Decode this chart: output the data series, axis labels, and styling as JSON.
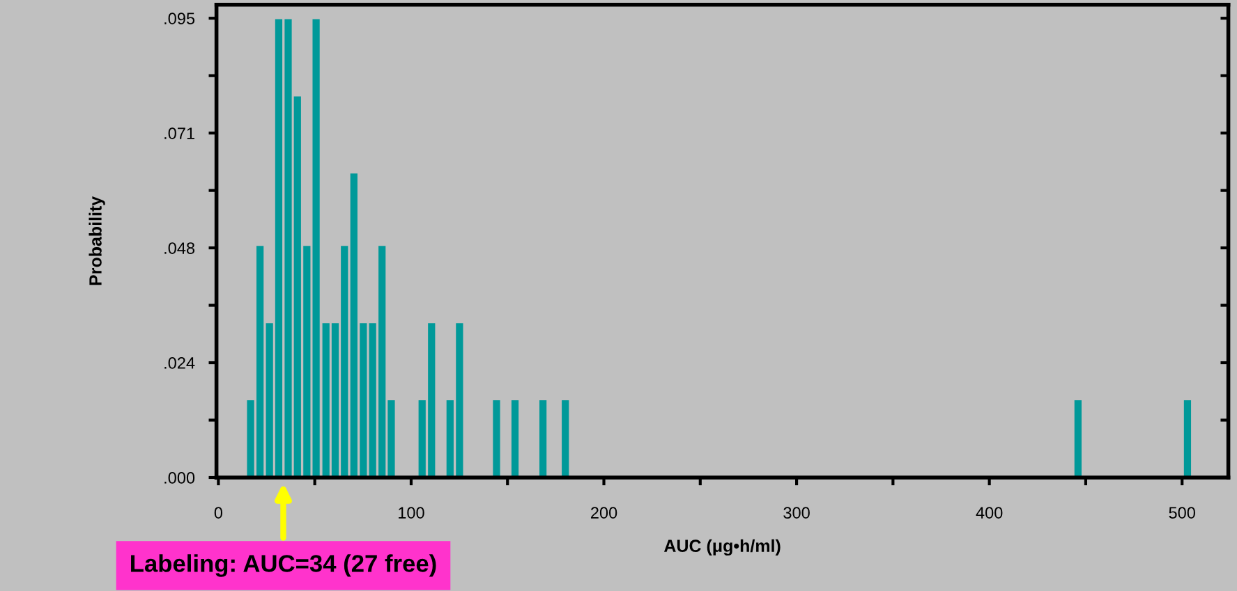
{
  "chart_data": {
    "type": "bar",
    "xlabel": "AUC (μg•h/ml)",
    "ylabel": "Probability",
    "x": [
      16.7,
      21.6,
      26.5,
      31.3,
      36.2,
      41.0,
      45.9,
      50.7,
      55.8,
      60.6,
      65.4,
      70.3,
      75.2,
      80.0,
      84.9,
      89.7,
      105.7,
      110.6,
      120.2,
      125.1,
      144.3,
      153.9,
      168.4,
      180.0,
      446.0,
      502.8
    ],
    "values": [
      0.016,
      0.048,
      0.032,
      0.095,
      0.095,
      0.079,
      0.048,
      0.095,
      0.032,
      0.032,
      0.048,
      0.063,
      0.032,
      0.032,
      0.048,
      0.016,
      0.016,
      0.032,
      0.016,
      0.032,
      0.016,
      0.016,
      0.016,
      0.016,
      0.016,
      0.016
    ],
    "color": "#009999",
    "xlim": [
      -1,
      524
    ],
    "ylim": [
      0,
      0.098
    ],
    "xticks": [
      0,
      {
        "value": 50,
        "label": null
      },
      100,
      {
        "value": 150,
        "label": null
      },
      200,
      {
        "value": 250,
        "label": null
      },
      300,
      {
        "value": 350,
        "label": null
      },
      400,
      {
        "value": 450,
        "label": null
      },
      500
    ],
    "yticks": [
      {
        "value": 0,
        "label": ".000"
      },
      {
        "value": 0.0119,
        "label": null
      },
      {
        "value": 0.0238,
        "label": ".024"
      },
      {
        "value": 0.0357,
        "label": null
      },
      {
        "value": 0.0476,
        "label": ".048"
      },
      {
        "value": 0.0595,
        "label": null
      },
      {
        "value": 0.0714,
        "label": ".071"
      },
      {
        "value": 0.0833,
        "label": null
      },
      {
        "value": 0.0952,
        "label": ".095"
      }
    ],
    "annotations": [
      "Labeling: AUC=34 (27 free)"
    ],
    "grid": false,
    "legend": false
  }
}
